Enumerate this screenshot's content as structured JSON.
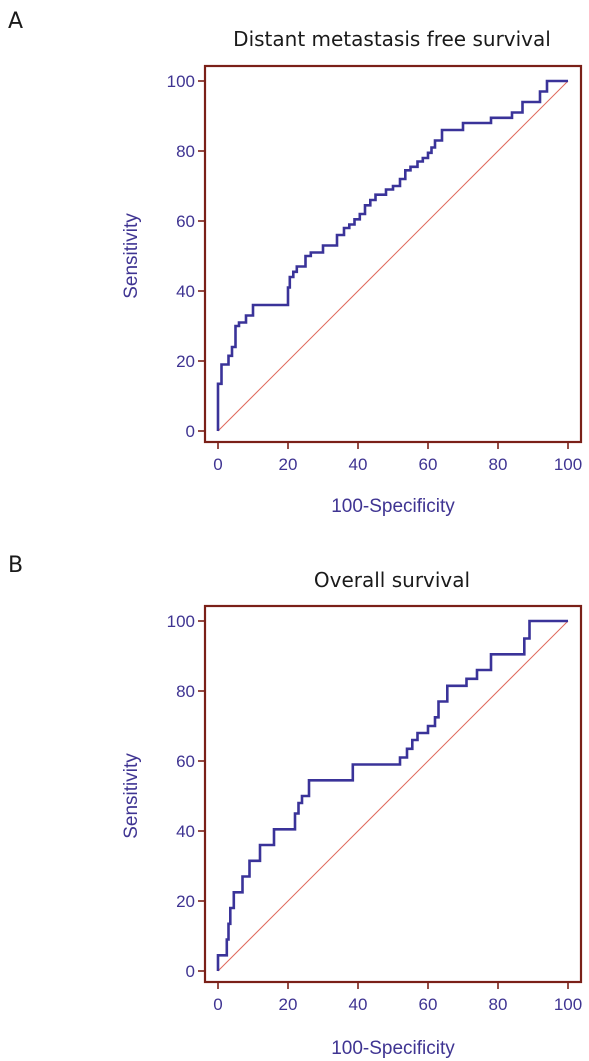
{
  "chart_data": [
    {
      "type": "line",
      "panel_label": "A",
      "title": "Distant metastasis free survival",
      "xlabel": "100-Specificity",
      "ylabel": "Sensitivity",
      "xlim": [
        0,
        100
      ],
      "ylim": [
        0,
        100
      ],
      "xticks": [
        "0",
        "20",
        "40",
        "60",
        "80",
        "100"
      ],
      "yticks": [
        "0",
        "20",
        "40",
        "60",
        "80",
        "100"
      ],
      "grid": false,
      "colors": {
        "roc": "#3a3399",
        "reference": "#e0695c",
        "frame": "#7a2018",
        "text": "#3f3492"
      },
      "series": [
        {
          "kind": "step",
          "x": [
            0,
            0,
            1,
            1,
            3,
            3,
            4,
            4,
            5,
            5,
            6,
            6,
            8,
            8,
            10,
            10,
            20,
            20,
            20.5,
            20.5,
            21.5,
            21.5,
            22.5,
            22.5,
            25,
            25,
            26.5,
            26.5,
            30,
            30,
            34,
            34,
            36,
            36,
            37.5,
            37.5,
            39,
            39,
            40.5,
            40.5,
            42,
            42,
            43.5,
            43.5,
            45,
            45,
            48,
            48,
            50,
            50,
            52,
            52,
            53.5,
            53.5,
            55,
            55,
            57,
            57,
            58.5,
            58.5,
            60,
            60,
            61,
            61,
            62,
            62,
            64,
            64,
            70,
            70,
            78,
            78,
            84,
            84,
            87,
            87,
            92,
            92,
            94,
            94,
            100
          ],
          "y": [
            0,
            13.5,
            13.5,
            19,
            19,
            21.5,
            21.5,
            24,
            24,
            30,
            30,
            31,
            31,
            33,
            33,
            36,
            36,
            41,
            41,
            44,
            44,
            45.5,
            45.5,
            47,
            47,
            50,
            50,
            51,
            51,
            53,
            53,
            56,
            56,
            58,
            58,
            59,
            59,
            60.5,
            60.5,
            62,
            62,
            64.5,
            64.5,
            66,
            66,
            67.5,
            67.5,
            69,
            69,
            70,
            70,
            72,
            72,
            74.5,
            74.5,
            75.5,
            75.5,
            77,
            77,
            78,
            78,
            79.5,
            79.5,
            81,
            81,
            83,
            83,
            86,
            86,
            88,
            88,
            89.5,
            89.5,
            91,
            91,
            94,
            94,
            97,
            97,
            100,
            100
          ]
        }
      ],
      "reference_line": {
        "x": [
          0,
          100
        ],
        "y": [
          0,
          100
        ]
      }
    },
    {
      "type": "line",
      "panel_label": "B",
      "title": "Overall survival",
      "xlabel": "100-Specificity",
      "ylabel": "Sensitivity",
      "xlim": [
        0,
        100
      ],
      "ylim": [
        0,
        100
      ],
      "xticks": [
        "0",
        "20",
        "40",
        "60",
        "80",
        "100"
      ],
      "yticks": [
        "0",
        "20",
        "40",
        "60",
        "80",
        "100"
      ],
      "grid": false,
      "colors": {
        "roc": "#3a3399",
        "reference": "#e0695c",
        "frame": "#7a2018",
        "text": "#3f3492"
      },
      "series": [
        {
          "kind": "step",
          "x": [
            0,
            0,
            2.5,
            2.5,
            3,
            3,
            3.5,
            3.5,
            4.5,
            4.5,
            7,
            7,
            9,
            9,
            12,
            12,
            16,
            16,
            22,
            22,
            23,
            23,
            24,
            24,
            26,
            26,
            28,
            28,
            38.5,
            38.5,
            52,
            52,
            54,
            54,
            55.5,
            55.5,
            57,
            57,
            60,
            60,
            62,
            62,
            63,
            63,
            65.5,
            65.5,
            71,
            71,
            74,
            74,
            78,
            78,
            87.5,
            87.5,
            89,
            89,
            100
          ],
          "y": [
            0,
            4.5,
            4.5,
            9,
            9,
            13.5,
            13.5,
            18,
            18,
            22.5,
            22.5,
            27,
            27,
            31.5,
            31.5,
            36,
            36,
            40.5,
            40.5,
            45,
            45,
            48,
            48,
            50,
            50,
            54.5,
            54.5,
            54.5,
            54.5,
            59,
            59,
            61,
            61,
            63.5,
            63.5,
            66,
            66,
            68,
            68,
            70,
            70,
            72.5,
            72.5,
            77,
            77,
            81.5,
            81.5,
            83.5,
            83.5,
            86,
            86,
            90.5,
            90.5,
            95,
            95,
            100,
            100
          ]
        }
      ],
      "reference_line": {
        "x": [
          0,
          100
        ],
        "y": [
          0,
          100
        ]
      }
    }
  ]
}
